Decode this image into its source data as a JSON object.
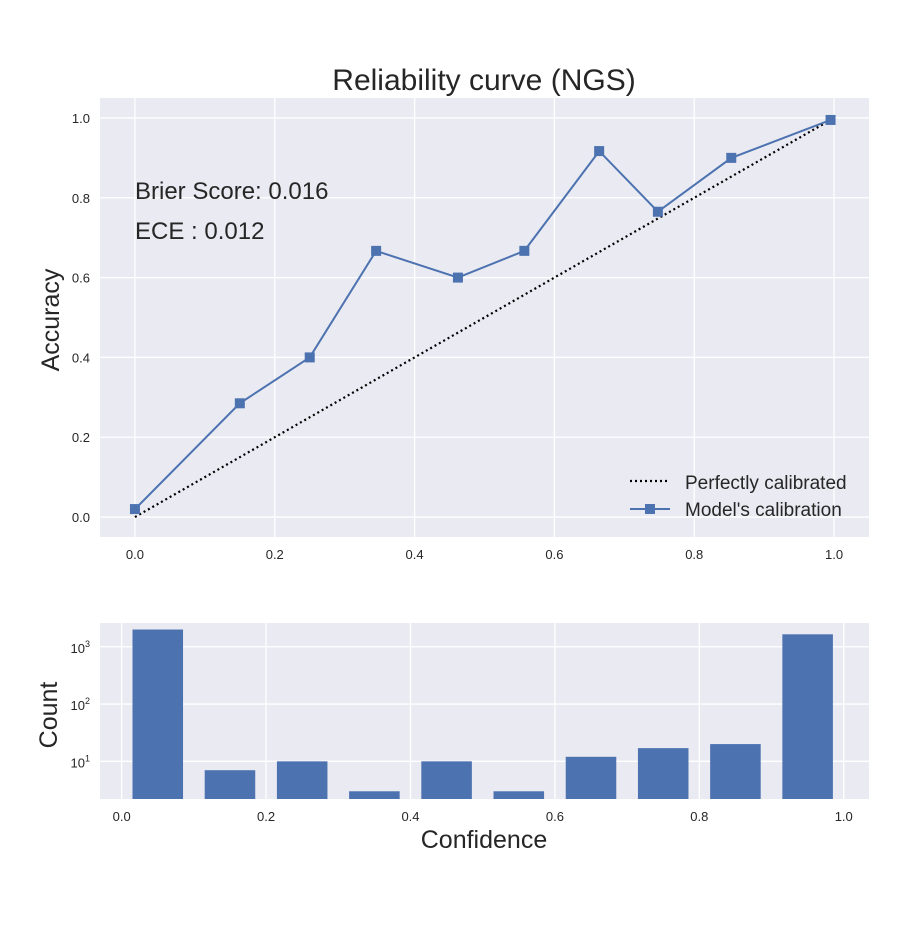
{
  "colors": {
    "background": "#eaeaf2",
    "series": "#4c72b0",
    "diagonal": "#000000",
    "text": "#262626"
  },
  "chart_data": [
    {
      "type": "line",
      "title": "Reliability curve (NGS)",
      "xlabel": "",
      "ylabel": "Accuracy",
      "xlim": [
        -0.05,
        1.05
      ],
      "ylim": [
        -0.05,
        1.05
      ],
      "xticks": [
        "0.0",
        "0.2",
        "0.4",
        "0.6",
        "0.8",
        "1.0"
      ],
      "yticks": [
        "0.0",
        "0.2",
        "0.4",
        "0.6",
        "0.8",
        "1.0"
      ],
      "grid": true,
      "legend": "bottom-right",
      "annotations": [
        "Brier Score: 0.016",
        "ECE : 0.012"
      ],
      "series": [
        {
          "name": "Perfectly calibrated",
          "style": "dotted",
          "x": [
            0.0,
            1.0
          ],
          "y": [
            0.0,
            1.0
          ]
        },
        {
          "name": "Model's calibration",
          "style": "solid-square",
          "x": [
            0.0,
            0.15,
            0.25,
            0.345,
            0.462,
            0.557,
            0.664,
            0.748,
            0.853,
            0.995
          ],
          "y": [
            0.02,
            0.285,
            0.4,
            0.667,
            0.6,
            0.667,
            0.917,
            0.765,
            0.9,
            0.995
          ]
        }
      ]
    },
    {
      "type": "bar",
      "xlabel": "Confidence",
      "ylabel": "Count",
      "yscale": "log",
      "xlim": [
        -0.03,
        1.035
      ],
      "ylim": [
        2.2,
        2600
      ],
      "xticks": [
        "0.0",
        "0.2",
        "0.4",
        "0.6",
        "0.8",
        "1.0"
      ],
      "ytick_values": [
        10,
        100,
        1000
      ],
      "grid": true,
      "bar_width": 0.07,
      "categories": [
        0.05,
        0.15,
        0.25,
        0.35,
        0.45,
        0.55,
        0.65,
        0.75,
        0.85,
        0.95
      ],
      "values": [
        2000,
        7,
        10,
        3,
        10,
        3,
        12,
        17,
        20,
        1650
      ]
    }
  ]
}
